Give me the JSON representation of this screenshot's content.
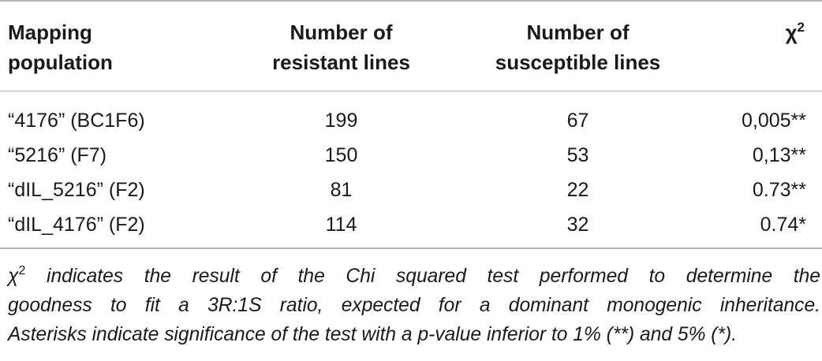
{
  "table": {
    "headers": {
      "mapping_population": [
        "Mapping",
        "population"
      ],
      "resistant": [
        "Number of",
        "resistant lines"
      ],
      "susceptible": [
        "Number of",
        "susceptible lines"
      ],
      "chi_symbol": "χ",
      "chi_exponent": "2"
    },
    "rows": [
      {
        "population": "“4176” (BC1F6)",
        "resistant": "199",
        "susceptible": "67",
        "chi2": "0,005**"
      },
      {
        "population": "“5216” (F7)",
        "resistant": "150",
        "susceptible": "53",
        "chi2": "0,13**"
      },
      {
        "population": "“dIL_5216” (F2)",
        "resistant": "81",
        "susceptible": "22",
        "chi2": "0.73**"
      },
      {
        "population": "“dIL_4176” (F2)",
        "resistant": "114",
        "susceptible": "32",
        "chi2": "0.74*"
      }
    ]
  },
  "footnote": {
    "chi_symbol": "χ",
    "chi_exponent": "2",
    "line1_rest": " indicates the result of the Chi squared test performed to determine the",
    "line2": "goodness to fit a 3R:1S ratio, expected for a dominant monogenic inheritance.",
    "line3": "Asterisks indicate significance of the test with a p-value inferior to 1% (**) and 5% (*)."
  }
}
